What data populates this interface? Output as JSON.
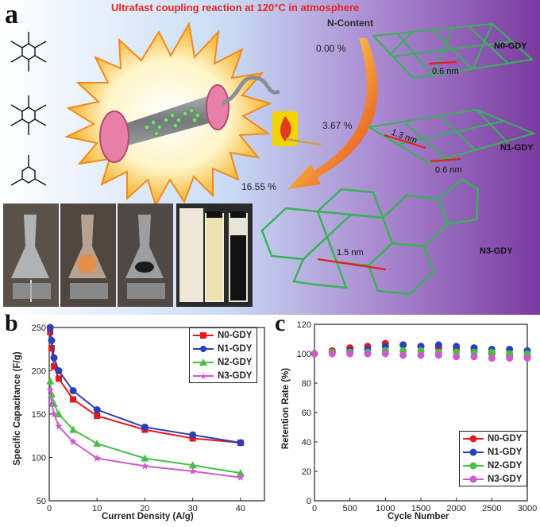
{
  "panel_a": {
    "letter": "a",
    "headline": "Ultrafast coupling reaction at 120°C in atmosphere",
    "n_content_label": "N-Content",
    "n_levels": [
      "0.00 %",
      "3.67 %",
      "16.55 %"
    ],
    "structures": [
      {
        "name": "N0-GDY",
        "dims": [
          "0.6 nm"
        ]
      },
      {
        "name": "N1-GDY",
        "dims": [
          "1.3 nm",
          "0.6 nm"
        ]
      },
      {
        "name": "N3-GDY",
        "dims": [
          "1.5 nm"
        ]
      }
    ],
    "colors": {
      "burst_outer": "#f3b01c",
      "burst_inner": "#fff5c8",
      "background_left": "#c9dcf5",
      "background_right": "#7a3aa0",
      "arrow": "#e23a1a",
      "lattice": "#35b454",
      "headline": "#e8231d"
    }
  },
  "chart_data": [
    {
      "type": "line",
      "letter": "b",
      "xlabel": "Current Density (A/g)",
      "ylabel": "Specific Capacitance (F/g)",
      "xlim": [
        0,
        45
      ],
      "ylim": [
        50,
        250
      ],
      "xticks": [
        0,
        10,
        20,
        30,
        40
      ],
      "yticks": [
        50,
        100,
        150,
        200,
        250
      ],
      "x": [
        0.2,
        0.5,
        1,
        2,
        5,
        10,
        20,
        30,
        40
      ],
      "legend_position": "top-right",
      "series": [
        {
          "name": "N0-GDY",
          "color": "#e31a1c",
          "marker": "square",
          "values": [
            245,
            226,
            205,
            191,
            167,
            148,
            132,
            122,
            117
          ]
        },
        {
          "name": "N1-GDY",
          "color": "#2b3fb8",
          "marker": "circle",
          "values": [
            250,
            235,
            215,
            200,
            177,
            155,
            135,
            126,
            117
          ]
        },
        {
          "name": "N2-GDY",
          "color": "#46c043",
          "marker": "triangle",
          "values": [
            188,
            173,
            162,
            150,
            132,
            116,
            99,
            91,
            82
          ]
        },
        {
          "name": "N3-GDY",
          "color": "#cc5bcc",
          "marker": "star",
          "values": [
            178,
            162,
            150,
            136,
            118,
            99,
            90,
            84,
            77
          ]
        }
      ]
    },
    {
      "type": "scatter",
      "letter": "c",
      "xlabel": "Cycle Number",
      "ylabel": "Retention Rate (%)",
      "xlim": [
        0,
        3000
      ],
      "ylim": [
        0,
        120
      ],
      "xticks": [
        0,
        500,
        1000,
        1500,
        2000,
        2500,
        3000
      ],
      "yticks": [
        0,
        20,
        40,
        60,
        80,
        100,
        120
      ],
      "legend_position": "bottom-right",
      "series": [
        {
          "name": "N0-GDY",
          "color": "#e31a1c",
          "marker": "circle",
          "x": [
            0,
            250,
            500,
            750,
            1000,
            1250,
            1500,
            1750,
            2000,
            2250,
            2500,
            2750,
            3000
          ],
          "values": [
            100,
            102,
            104,
            105,
            107,
            106,
            105,
            104,
            103,
            102,
            100,
            99,
            98
          ]
        },
        {
          "name": "N1-GDY",
          "color": "#2b3fb8",
          "marker": "circle",
          "x": [
            0,
            250,
            500,
            750,
            1000,
            1250,
            1500,
            1750,
            2000,
            2250,
            2500,
            2750,
            3000
          ],
          "values": [
            100,
            101,
            102,
            103,
            105,
            106,
            105,
            106,
            105,
            104,
            103,
            103,
            102
          ]
        },
        {
          "name": "N2-GDY",
          "color": "#46c043",
          "marker": "circle",
          "x": [
            0,
            250,
            500,
            750,
            1000,
            1250,
            1500,
            1750,
            2000,
            2250,
            2500,
            2750,
            3000
          ],
          "values": [
            100,
            101,
            101,
            101,
            102,
            102,
            102,
            101,
            101,
            101,
            101,
            100,
            100
          ]
        },
        {
          "name": "N3-GDY",
          "color": "#cc5bcc",
          "marker": "circle",
          "x": [
            0,
            250,
            500,
            750,
            1000,
            1250,
            1500,
            1750,
            2000,
            2250,
            2500,
            2750,
            3000
          ],
          "values": [
            100,
            100,
            100,
            100,
            100,
            99,
            99,
            99,
            98,
            98,
            97,
            97,
            97
          ]
        }
      ]
    }
  ]
}
